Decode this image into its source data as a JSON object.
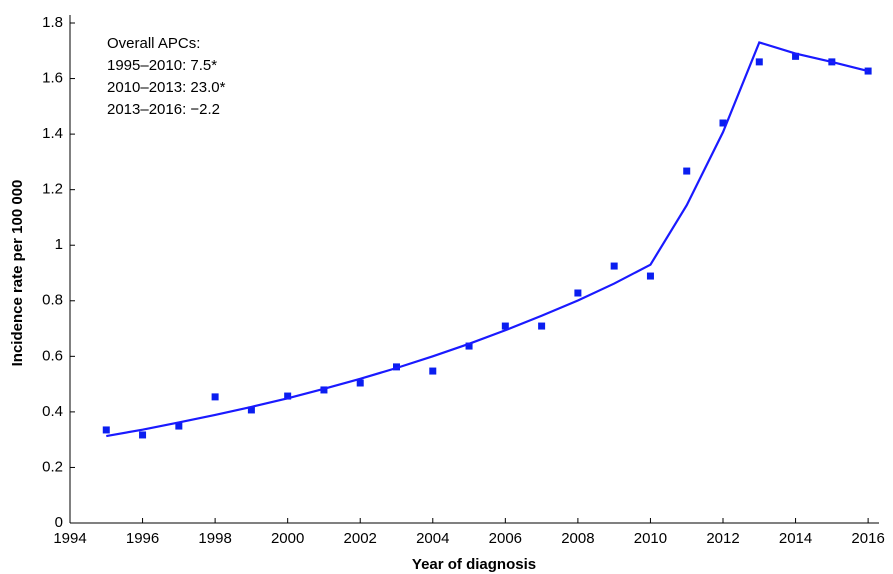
{
  "chart_data": {
    "type": "scatter",
    "xlabel": "Year of diagnosis",
    "ylabel": "Incidence rate per 100 000",
    "annotations": [
      "Overall APCs:",
      "1995–2010: 7.5*",
      "2010–2013: 23.0*",
      "2013–2016: −2.2"
    ],
    "xlim": [
      1994,
      2016.3
    ],
    "xticks": [
      1994,
      1996,
      1998,
      2000,
      2002,
      2004,
      2006,
      2008,
      2010,
      2012,
      2014,
      2016
    ],
    "ylim": [
      0,
      1.8
    ],
    "yticks": [
      0,
      0.2,
      0.4,
      0.6,
      0.8,
      1,
      1.2,
      1.4,
      1.6,
      1.8
    ],
    "grid": false,
    "series": [
      {
        "type": "scatter",
        "color": "#0a1ef0",
        "x": [
          1995,
          1996,
          1997,
          1998,
          1999,
          2000,
          2001,
          2002,
          2003,
          2004,
          2005,
          2006,
          2007,
          2008,
          2009,
          2010,
          2011,
          2012,
          2013,
          2014,
          2015,
          2016
        ],
        "values": [
          0.335,
          0.317,
          0.349,
          0.454,
          0.407,
          0.457,
          0.479,
          0.504,
          0.562,
          0.547,
          0.637,
          0.709,
          0.709,
          0.828,
          0.925,
          0.889,
          1.267,
          1.44,
          1.66,
          1.68,
          1.66,
          1.627
        ]
      },
      {
        "type": "line",
        "color": "#1a1aff",
        "x": [
          1995,
          1996,
          1997,
          1998,
          1999,
          2000,
          2001,
          2002,
          2003,
          2004,
          2005,
          2006,
          2007,
          2008,
          2009,
          2010,
          2011,
          2012,
          2013,
          2014,
          2015,
          2016
        ],
        "values": [
          0.313,
          0.336,
          0.362,
          0.389,
          0.418,
          0.449,
          0.483,
          0.519,
          0.558,
          0.6,
          0.645,
          0.694,
          0.746,
          0.801,
          0.862,
          0.93,
          1.144,
          1.407,
          1.73,
          1.69,
          1.66,
          1.627
        ]
      }
    ]
  }
}
